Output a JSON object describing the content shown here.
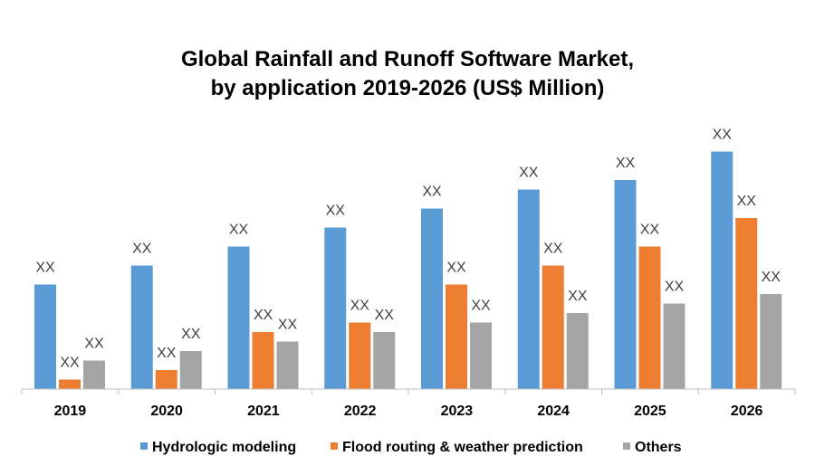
{
  "chart_data": {
    "type": "bar",
    "title": "Global Rainfall and Runoff Software Market, by application 2019-2026 (US$ Million)",
    "title_lines": [
      "Global Rainfall and Runoff Software Market,",
      "by application 2019-2026 (US$ Million)"
    ],
    "categories": [
      "2019",
      "2020",
      "2021",
      "2022",
      "2023",
      "2024",
      "2025",
      "2026"
    ],
    "series": [
      {
        "name": "Hydrologic modeling",
        "color": "#5B9BD5",
        "values": [
          55,
          65,
          75,
          85,
          95,
          105,
          110,
          125
        ],
        "data_labels": [
          "XX",
          "XX",
          "XX",
          "XX",
          "XX",
          "XX",
          "XX",
          "XX"
        ]
      },
      {
        "name": "Flood routing & weather prediction",
        "color": "#ED7D31",
        "values": [
          5,
          10,
          30,
          35,
          55,
          65,
          75,
          90
        ],
        "data_labels": [
          "XX",
          "XX",
          "XX",
          "XX",
          "XX",
          "XX",
          "XX",
          "XX"
        ]
      },
      {
        "name": "Others",
        "color": "#A5A5A5",
        "values": [
          15,
          20,
          25,
          30,
          35,
          40,
          45,
          50
        ],
        "data_labels": [
          "XX",
          "XX",
          "XX",
          "XX",
          "XX",
          "XX",
          "XX",
          "XX"
        ]
      }
    ],
    "xlabel": "",
    "ylabel": "",
    "ylim": [
      0,
      130
    ],
    "y_axis_shown": false,
    "grid": false,
    "legend": "bottom"
  }
}
